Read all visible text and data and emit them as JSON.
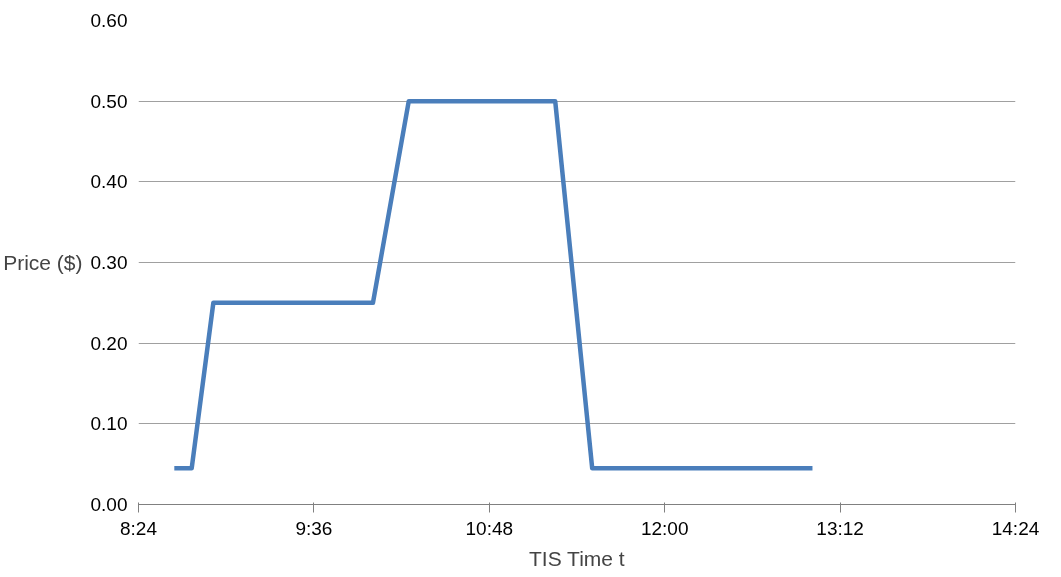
{
  "chart_data": {
    "type": "line",
    "xlabel": "TIS Time t",
    "ylabel": "Price ($)",
    "x": [
      8.645,
      8.764,
      8.912,
      10.004,
      10.249,
      11.251,
      11.504,
      13.011
    ],
    "series": [
      {
        "color": "#4a7ebb",
        "values": [
          0.045,
          0.045,
          0.25,
          0.25,
          0.5,
          0.5,
          0.045,
          0.045
        ]
      }
    ],
    "xlim": [
      8.4,
      14.4
    ],
    "ylim": [
      0,
      0.6
    ],
    "xticks": [
      {
        "value": 8.4,
        "label": "8:24"
      },
      {
        "value": 9.6,
        "label": "9:36"
      },
      {
        "value": 10.8,
        "label": "10:48"
      },
      {
        "value": 12.0,
        "label": "12:00"
      },
      {
        "value": 13.2,
        "label": "13:12"
      },
      {
        "value": 14.4,
        "label": "14:24"
      }
    ],
    "yticks": [
      {
        "value": 0,
        "label": "0.00"
      },
      {
        "value": 0.1,
        "label": "0.10"
      },
      {
        "value": 0.2,
        "label": "0.20"
      },
      {
        "value": 0.3,
        "label": "0.30"
      },
      {
        "value": 0.4,
        "label": "0.40"
      },
      {
        "value": 0.5,
        "label": "0.50"
      },
      {
        "value": 0.6,
        "label": "0.60"
      }
    ],
    "grid": "y",
    "marker": "none",
    "line_style": "solid"
  }
}
